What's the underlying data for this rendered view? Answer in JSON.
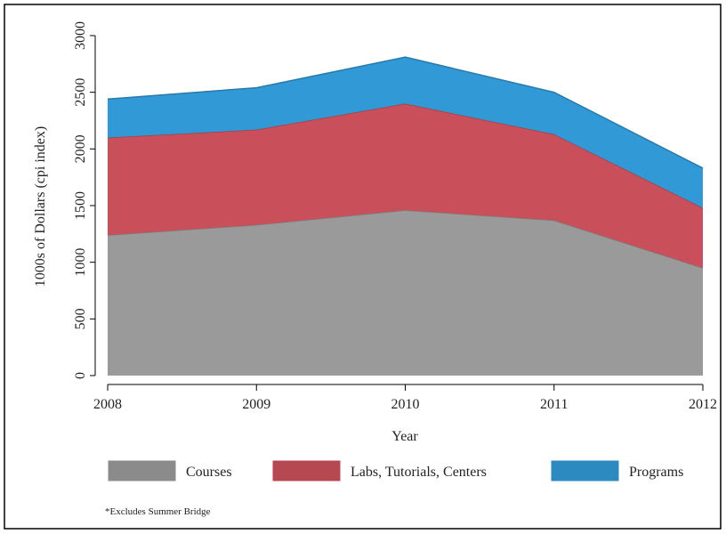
{
  "chart_data": {
    "type": "stacked-area",
    "x": [
      2008,
      2009,
      2010,
      2011,
      2012
    ],
    "xlim": [
      2008,
      2012
    ],
    "xticks": [
      2008,
      2009,
      2010,
      2011,
      2012
    ],
    "ylim": [
      0,
      3000
    ],
    "yticks": [
      0,
      500,
      1000,
      1500,
      2000,
      2500,
      3000
    ],
    "x_label": "Year",
    "y_label": "1000s of Dollars (cpi index)",
    "note": "*Excludes Summer Bridge",
    "series": [
      {
        "name": "Courses",
        "color": "#9a9a9a",
        "values": [
          1240,
          1330,
          1460,
          1370,
          950
        ]
      },
      {
        "name": "Labs, Tutorials, Centers",
        "color": "#c9505a",
        "values": [
          860,
          840,
          940,
          760,
          530
        ]
      },
      {
        "name": "Programs",
        "color": "#3199d6",
        "values": [
          340,
          370,
          410,
          370,
          350
        ]
      }
    ]
  }
}
